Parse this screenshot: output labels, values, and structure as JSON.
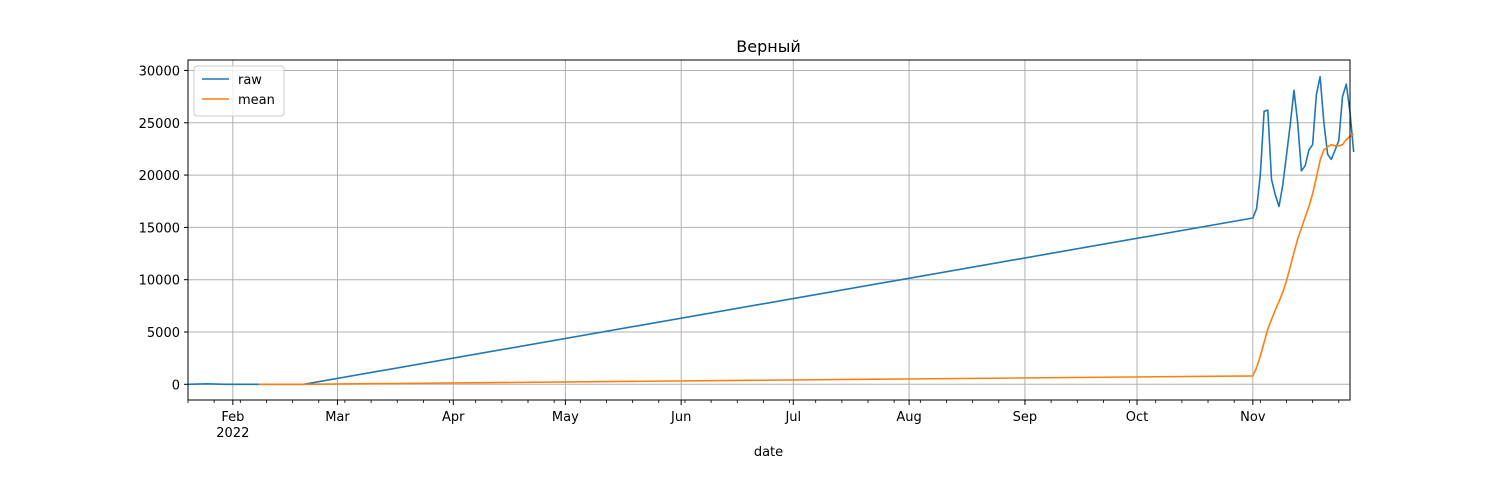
{
  "chart_data": {
    "type": "line",
    "title": "Верный",
    "xlabel": "date",
    "ylabel": "",
    "xlim": [
      "2022-01-20",
      "2022-11-27"
    ],
    "ylim": [
      -1500,
      31000
    ],
    "grid": true,
    "legend_position": "top-left",
    "y_ticks": [
      0,
      5000,
      10000,
      15000,
      20000,
      25000,
      30000
    ],
    "x_ticks": [
      {
        "date": "2022-02-01",
        "label": "Feb",
        "sublabel": "2022"
      },
      {
        "date": "2022-03-01",
        "label": "Mar"
      },
      {
        "date": "2022-04-01",
        "label": "Apr"
      },
      {
        "date": "2022-05-01",
        "label": "May"
      },
      {
        "date": "2022-06-01",
        "label": "Jun"
      },
      {
        "date": "2022-07-01",
        "label": "Jul"
      },
      {
        "date": "2022-08-01",
        "label": "Aug"
      },
      {
        "date": "2022-09-01",
        "label": "Sep"
      },
      {
        "date": "2022-10-01",
        "label": "Oct"
      },
      {
        "date": "2022-11-01",
        "label": "Nov"
      }
    ],
    "series": [
      {
        "name": "raw",
        "color": "#1f77b4",
        "points": [
          [
            "2022-01-20",
            0
          ],
          [
            "2022-01-25",
            50
          ],
          [
            "2022-01-30",
            0
          ],
          [
            "2022-02-10",
            0
          ],
          [
            "2022-02-20",
            0
          ],
          [
            "2022-11-01",
            15900
          ],
          [
            "2022-11-02",
            16800
          ],
          [
            "2022-11-03",
            20000
          ],
          [
            "2022-11-04",
            26100
          ],
          [
            "2022-11-05",
            26200
          ],
          [
            "2022-11-06",
            19600
          ],
          [
            "2022-11-07",
            18100
          ],
          [
            "2022-11-08",
            17000
          ],
          [
            "2022-11-09",
            19000
          ],
          [
            "2022-11-10",
            21900
          ],
          [
            "2022-11-11",
            24800
          ],
          [
            "2022-11-12",
            28100
          ],
          [
            "2022-11-13",
            25000
          ],
          [
            "2022-11-14",
            20400
          ],
          [
            "2022-11-15",
            20900
          ],
          [
            "2022-11-16",
            22400
          ],
          [
            "2022-11-17",
            22900
          ],
          [
            "2022-11-18",
            27700
          ],
          [
            "2022-11-19",
            29400
          ],
          [
            "2022-11-20",
            25100
          ],
          [
            "2022-11-21",
            22000
          ],
          [
            "2022-11-22",
            21500
          ],
          [
            "2022-11-23",
            22400
          ],
          [
            "2022-11-24",
            23300
          ],
          [
            "2022-11-25",
            27500
          ],
          [
            "2022-11-26",
            28700
          ],
          [
            "2022-11-27",
            26000
          ],
          [
            "2022-11-28",
            22200
          ]
        ]
      },
      {
        "name": "mean",
        "color": "#ff7f0e",
        "points": [
          [
            "2022-02-08",
            0
          ],
          [
            "2022-02-20",
            0
          ],
          [
            "2022-11-01",
            800
          ],
          [
            "2022-11-02",
            1600
          ],
          [
            "2022-11-03",
            2700
          ],
          [
            "2022-11-04",
            4000
          ],
          [
            "2022-11-05",
            5300
          ],
          [
            "2022-11-06",
            6200
          ],
          [
            "2022-11-07",
            7100
          ],
          [
            "2022-11-08",
            7900
          ],
          [
            "2022-11-09",
            8800
          ],
          [
            "2022-11-10",
            9900
          ],
          [
            "2022-11-11",
            11200
          ],
          [
            "2022-11-12",
            12600
          ],
          [
            "2022-11-13",
            13900
          ],
          [
            "2022-11-14",
            14900
          ],
          [
            "2022-11-15",
            16000
          ],
          [
            "2022-11-16",
            17000
          ],
          [
            "2022-11-17",
            18200
          ],
          [
            "2022-11-18",
            19800
          ],
          [
            "2022-11-19",
            21400
          ],
          [
            "2022-11-20",
            22400
          ],
          [
            "2022-11-21",
            22700
          ],
          [
            "2022-11-22",
            22900
          ],
          [
            "2022-11-23",
            22800
          ],
          [
            "2022-11-24",
            22800
          ],
          [
            "2022-11-25",
            22900
          ],
          [
            "2022-11-26",
            23400
          ],
          [
            "2022-11-27",
            23700
          ],
          [
            "2022-11-28",
            23900
          ]
        ]
      }
    ]
  }
}
